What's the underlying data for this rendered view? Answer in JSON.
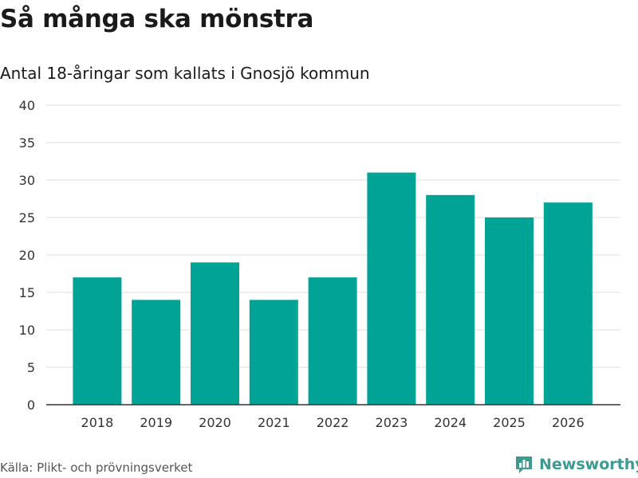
{
  "header": {
    "title": "Så många ska mönstra",
    "subtitle": "Antal 18-åringar som kallats i Gnosjö kommun"
  },
  "footer": {
    "source": "Källa: Plikt- och prövningsverket",
    "brand": "Newsworthy"
  },
  "colors": {
    "bar": "#00a396",
    "grid": "#dddddd",
    "axis": "#333333",
    "brand": "#3d9a90"
  },
  "chart_data": {
    "type": "bar",
    "title": "Så många ska mönstra",
    "subtitle": "Antal 18-åringar som kallats i Gnosjö kommun",
    "xlabel": "",
    "ylabel": "",
    "categories": [
      "2018",
      "2019",
      "2020",
      "2021",
      "2022",
      "2023",
      "2024",
      "2025",
      "2026"
    ],
    "values": [
      17,
      14,
      19,
      14,
      17,
      31,
      28,
      25,
      27
    ],
    "ylim": [
      0,
      40
    ],
    "yticks": [
      0,
      5,
      10,
      15,
      20,
      25,
      30,
      35,
      40
    ],
    "grid": true,
    "legend": "none"
  }
}
